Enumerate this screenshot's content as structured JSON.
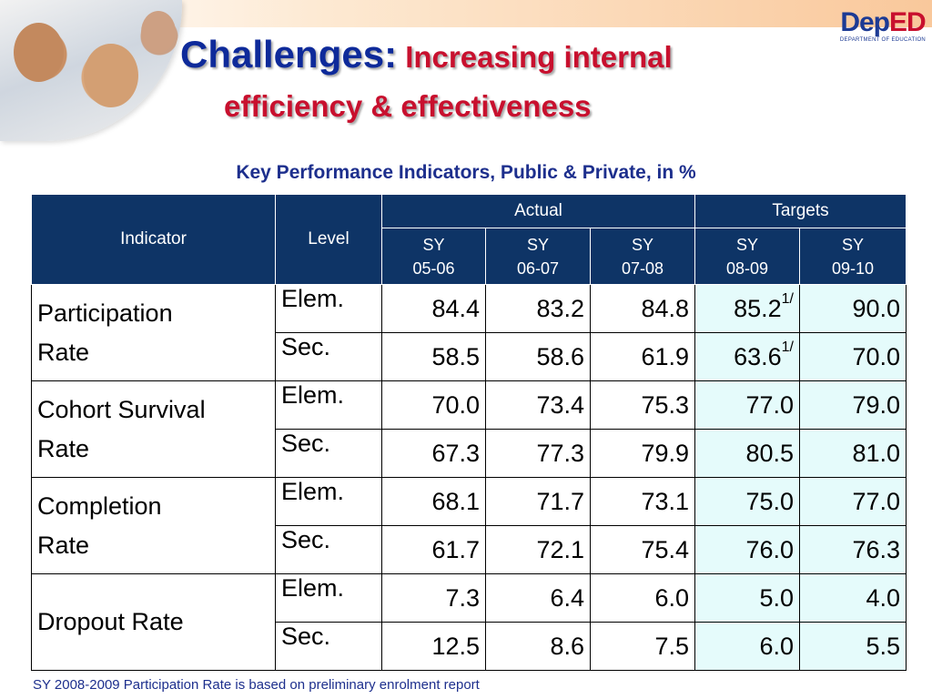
{
  "header": {
    "title_main": "Challenges:",
    "title_rest": " Increasing internal",
    "title_line2": "efficiency & effectiveness",
    "logo_text_dep": "Dep",
    "logo_text_ed": "ED",
    "logo_sub": "DEPARTMENT OF EDUCATION"
  },
  "caption": "Key Performance Indicators, Public & Private, in %",
  "table": {
    "col_indicator": "Indicator",
    "col_level": "Level",
    "group_actual": "Actual",
    "group_targets": "Targets",
    "years": [
      {
        "a": "SY",
        "b": "05-06"
      },
      {
        "a": "SY",
        "b": "06-07"
      },
      {
        "a": "SY",
        "b": "07-08"
      },
      {
        "a": "SY",
        "b": "08-09"
      },
      {
        "a": "SY",
        "b": "09-10"
      }
    ],
    "rows": [
      {
        "indicator": [
          "Participation",
          "Rate"
        ],
        "level": "Elem.",
        "v1": "84.4",
        "v2": "83.2",
        "v3": "84.8",
        "t1": "85.2",
        "t1_note": "1/",
        "t2": "90.0"
      },
      {
        "level": "Sec.",
        "v1": "58.5",
        "v2": "58.6",
        "v3": "61.9",
        "t1": "63.6",
        "t1_note": "1/",
        "t2": "70.0"
      },
      {
        "indicator": [
          "Cohort Survival",
          "Rate"
        ],
        "level": "Elem.",
        "v1": "70.0",
        "v2": "73.4",
        "v3": "75.3",
        "t1": "77.0",
        "t2": "79.0"
      },
      {
        "level": "Sec.",
        "v1": "67.3",
        "v2": "77.3",
        "v3": "79.9",
        "t1": "80.5",
        "t2": "81.0"
      },
      {
        "indicator": [
          "Completion",
          "Rate"
        ],
        "level": "Elem.",
        "v1": "68.1",
        "v2": "71.7",
        "v3": "73.1",
        "t1": "75.0",
        "t2": "77.0"
      },
      {
        "level": "Sec.",
        "v1": "61.7",
        "v2": "72.1",
        "v3": "75.4",
        "t1": "76.0",
        "t2": "76.3"
      },
      {
        "indicator": [
          "Dropout Rate"
        ],
        "level": "Elem.",
        "v1": "7.3",
        "v2": "6.4",
        "v3": "6.0",
        "t1": "5.0",
        "t2": "4.0"
      },
      {
        "level": "Sec.",
        "v1": "12.5",
        "v2": "8.6",
        "v3": "7.5",
        "t1": "6.0",
        "t2": "5.5"
      }
    ]
  },
  "footnote": "SY 2008-2009 Participation Rate is based on preliminary enrolment report",
  "colors": {
    "header_bg": "#0e3466",
    "target_bg": "#e5fbfb",
    "target_red": "#e3001b",
    "title_blue": "#0e2a9a",
    "title_red": "#c8102e"
  },
  "images": {
    "photo": "children-photo",
    "logo": "deped-logo"
  }
}
